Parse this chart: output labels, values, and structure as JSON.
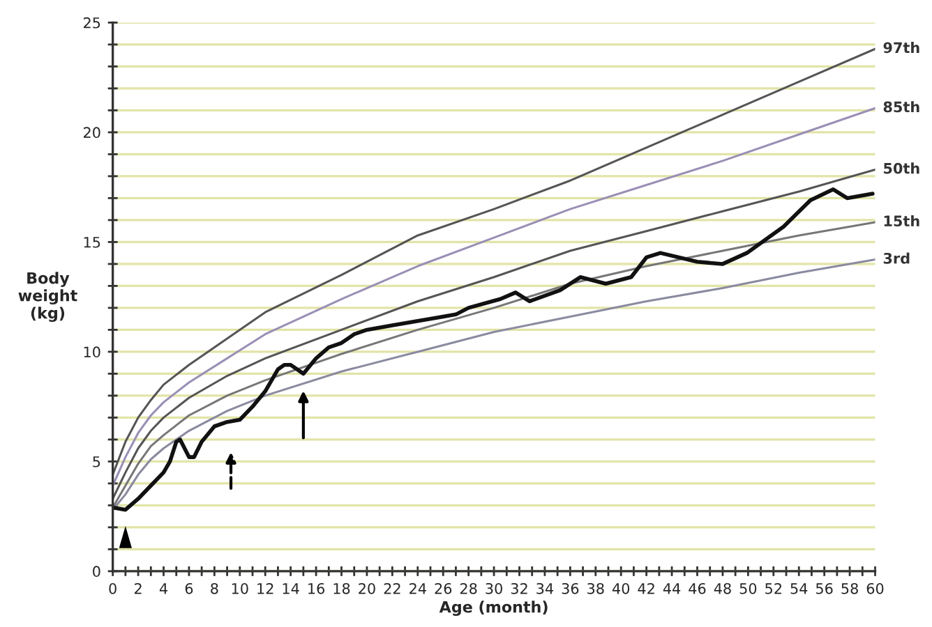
{
  "chart_data": {
    "type": "line",
    "xlabel": "Age (month)",
    "ylabel": "Body\nweight\n(kg)",
    "xlim": [
      0,
      60
    ],
    "ylim": [
      0,
      25
    ],
    "xticks": [
      0,
      {
        "value": 1,
        "label": null
      },
      2,
      {
        "value": 3,
        "label": null
      },
      4,
      {
        "value": 5,
        "label": null
      },
      6,
      {
        "value": 7,
        "label": null
      },
      8,
      {
        "value": 9,
        "label": null
      },
      10,
      {
        "value": 11,
        "label": null
      },
      12,
      {
        "value": 13,
        "label": null
      },
      14,
      {
        "value": 15,
        "label": null
      },
      16,
      {
        "value": 17,
        "label": null
      },
      18,
      {
        "value": 19,
        "label": null
      },
      20,
      {
        "value": 21,
        "label": null
      },
      22,
      {
        "value": 23,
        "label": null
      },
      24,
      {
        "value": 25,
        "label": null
      },
      26,
      {
        "value": 27,
        "label": null
      },
      28,
      {
        "value": 29,
        "label": null
      },
      30,
      {
        "value": 31,
        "label": null
      },
      32,
      {
        "value": 33,
        "label": null
      },
      34,
      {
        "value": 35,
        "label": null
      },
      36,
      {
        "value": 37,
        "label": null
      },
      38,
      {
        "value": 39,
        "label": null
      },
      40,
      {
        "value": 41,
        "label": null
      },
      42,
      {
        "value": 43,
        "label": null
      },
      44,
      {
        "value": 45,
        "label": null
      },
      46,
      {
        "value": 47,
        "label": null
      },
      48,
      {
        "value": 49,
        "label": null
      },
      50,
      {
        "value": 51,
        "label": null
      },
      52,
      {
        "value": 53,
        "label": null
      },
      54,
      {
        "value": 55,
        "label": null
      },
      56,
      {
        "value": 57,
        "label": null
      },
      58,
      {
        "value": 59,
        "label": null
      },
      60
    ],
    "yticks": [
      0,
      {
        "value": 1,
        "label": null
      },
      {
        "value": 2,
        "label": null
      },
      {
        "value": 3,
        "label": null
      },
      {
        "value": 4,
        "label": null
      },
      5,
      {
        "value": 6,
        "label": null
      },
      {
        "value": 7,
        "label": null
      },
      {
        "value": 8,
        "label": null
      },
      {
        "value": 9,
        "label": null
      },
      10,
      {
        "value": 11,
        "label": null
      },
      {
        "value": 12,
        "label": null
      },
      {
        "value": 13,
        "label": null
      },
      {
        "value": 14,
        "label": null
      },
      15,
      {
        "value": 16,
        "label": null
      },
      {
        "value": 17,
        "label": null
      },
      {
        "value": 18,
        "label": null
      },
      {
        "value": 19,
        "label": null
      },
      20,
      {
        "value": 21,
        "label": null
      },
      {
        "value": 22,
        "label": null
      },
      {
        "value": 23,
        "label": null
      },
      {
        "value": 24,
        "label": null
      },
      25
    ],
    "grid": "y",
    "marker": "none",
    "line_style": "solid",
    "series": [
      {
        "name": "97th",
        "color": "#555555",
        "x": [
          0,
          1,
          2,
          3,
          4,
          6,
          9,
          12,
          18,
          24,
          30,
          36,
          42,
          48,
          54,
          60
        ],
        "values": [
          4.4,
          5.9,
          7.0,
          7.8,
          8.5,
          9.4,
          10.6,
          11.8,
          13.5,
          15.3,
          16.5,
          17.8,
          19.3,
          20.8,
          22.3,
          23.8
        ]
      },
      {
        "name": "85th",
        "color": "#9a8fb5",
        "x": [
          0,
          1,
          2,
          3,
          4,
          6,
          9,
          12,
          18,
          24,
          30,
          36,
          42,
          48,
          54,
          60
        ],
        "values": [
          3.9,
          5.2,
          6.3,
          7.1,
          7.7,
          8.6,
          9.7,
          10.8,
          12.4,
          13.9,
          15.2,
          16.5,
          17.6,
          18.7,
          19.9,
          21.1
        ]
      },
      {
        "name": "50th",
        "color": "#555555",
        "x": [
          0,
          1,
          2,
          3,
          4,
          6,
          9,
          12,
          18,
          24,
          30,
          36,
          42,
          48,
          54,
          60
        ],
        "values": [
          3.3,
          4.5,
          5.6,
          6.4,
          7.0,
          7.9,
          8.9,
          9.7,
          11.0,
          12.3,
          13.4,
          14.6,
          15.5,
          16.4,
          17.3,
          18.3
        ]
      },
      {
        "name": "15th",
        "color": "#777777",
        "x": [
          0,
          1,
          2,
          3,
          4,
          6,
          9,
          12,
          18,
          24,
          30,
          36,
          42,
          48,
          54,
          60
        ],
        "values": [
          2.9,
          3.9,
          4.9,
          5.7,
          6.2,
          7.1,
          8.0,
          8.7,
          9.9,
          11.0,
          12.0,
          13.1,
          13.9,
          14.6,
          15.3,
          15.9
        ]
      },
      {
        "name": "3rd",
        "color": "#8a8aa0",
        "x": [
          0,
          1,
          2,
          3,
          4,
          6,
          9,
          12,
          18,
          24,
          30,
          36,
          42,
          48,
          54,
          60
        ],
        "values": [
          2.8,
          3.5,
          4.4,
          5.1,
          5.6,
          6.4,
          7.3,
          8.0,
          9.1,
          10.0,
          10.9,
          11.6,
          12.3,
          12.9,
          13.6,
          14.2
        ]
      },
      {
        "color": "#111111",
        "x": [
          0,
          1,
          2,
          3,
          4,
          4.5,
          5,
          5.3,
          6,
          6.4,
          7,
          8,
          9,
          10,
          11,
          12,
          13,
          13.5,
          14,
          15,
          16,
          17,
          18,
          19,
          20,
          22,
          24,
          26,
          27,
          28,
          30.5,
          31.7,
          32.8,
          35.2,
          36.8,
          38.8,
          40.8,
          42,
          43.1,
          46,
          48,
          49.9,
          52.8,
          54.9,
          56.7,
          57.8,
          59.8
        ],
        "values": [
          2.9,
          2.8,
          3.3,
          3.9,
          4.5,
          5.0,
          5.9,
          6.0,
          5.2,
          5.2,
          5.9,
          6.6,
          6.8,
          6.9,
          7.5,
          8.2,
          9.2,
          9.4,
          9.4,
          9.0,
          9.7,
          10.2,
          10.4,
          10.8,
          11.0,
          11.2,
          11.4,
          11.6,
          11.7,
          12.0,
          12.4,
          12.7,
          12.3,
          12.8,
          13.4,
          13.1,
          13.4,
          14.3,
          14.5,
          14.1,
          14.0,
          14.5,
          15.7,
          16.9,
          17.4,
          17.0,
          17.2
        ]
      }
    ]
  }
}
